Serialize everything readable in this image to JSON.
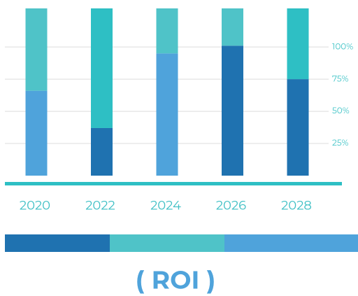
{
  "chart_data": {
    "type": "stacked_bar",
    "title": "( ROI )",
    "categories": [
      "2020",
      "2022",
      "2024",
      "2026",
      "2028"
    ],
    "series": [
      {
        "values": [
          66,
          37,
          95,
          101,
          75
        ],
        "colors": [
          "#4fa3db",
          "#1f72b0",
          "#4fa3db",
          "#1f72b0",
          "#1f72b0"
        ]
      },
      {
        "values": [
          64,
          93,
          35,
          29,
          55
        ],
        "colors": [
          "#4fc3c8",
          "#2ebfc4",
          "#4fc3c8",
          "#4fc3c8",
          "#2ebfc4"
        ]
      }
    ],
    "ylim": [
      0,
      130
    ],
    "yticks": [
      {
        "value": 25,
        "label": "25%"
      },
      {
        "value": 50,
        "label": "50%"
      },
      {
        "value": 75,
        "label": "75%"
      },
      {
        "value": 100,
        "label": "100%"
      }
    ],
    "grid": true
  }
}
